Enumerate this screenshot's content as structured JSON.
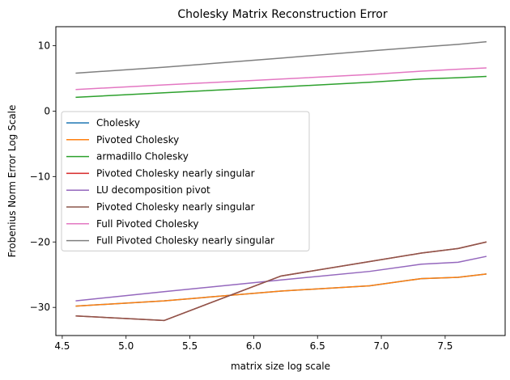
{
  "chart_data": {
    "type": "line",
    "title": "Cholesky Matrix Reconstruction Error",
    "xlabel": "matrix size log scale",
    "ylabel": "Frobenius Norm Error Log Scale",
    "xlim": [
      4.45,
      7.97
    ],
    "ylim": [
      -34.3,
      12.9
    ],
    "xticks": [
      4.5,
      5.0,
      5.5,
      6.0,
      6.5,
      7.0,
      7.5
    ],
    "xtick_labels": [
      "4.5",
      "5.0",
      "5.5",
      "6.0",
      "6.5",
      "7.0",
      "7.5"
    ],
    "yticks": [
      -30,
      -20,
      -10,
      0,
      10
    ],
    "ytick_labels": [
      "−30",
      "−20",
      "−10",
      "0",
      "10"
    ],
    "grid": false,
    "legend_position": "center-left",
    "x": [
      4.605,
      5.298,
      6.215,
      6.908,
      7.313,
      7.601,
      7.824
    ],
    "series": [
      {
        "name": "Cholesky",
        "color": "#1f77b4",
        "values": [
          -29.8,
          -29.0,
          -27.5,
          -26.7,
          -25.6,
          -25.4,
          -24.9
        ]
      },
      {
        "name": "Pivoted Cholesky",
        "color": "#ff7f0e",
        "values": [
          -29.8,
          -29.0,
          -27.5,
          -26.7,
          -25.6,
          -25.4,
          -24.9
        ]
      },
      {
        "name": "armadillo Cholesky",
        "color": "#2ca02c",
        "values": [
          2.1,
          2.8,
          3.7,
          4.4,
          4.9,
          5.1,
          5.3
        ]
      },
      {
        "name": "Pivoted Cholesky nearly singular",
        "color": "#d62728",
        "values": [
          -31.3,
          -32.0,
          -25.2,
          -23.0,
          -21.7,
          -21.0,
          -20.0
        ]
      },
      {
        "name": "LU decomposition pivot",
        "color": "#9467bd",
        "values": [
          -29.0,
          -27.6,
          -25.8,
          -24.5,
          -23.4,
          -23.1,
          -22.2
        ]
      },
      {
        "name": "Pivoted Cholesky nearly singular",
        "color": "#8c564b",
        "values": [
          -31.3,
          -32.0,
          -25.2,
          -23.0,
          -21.7,
          -21.0,
          -20.0
        ]
      },
      {
        "name": "Full Pivoted Cholesky",
        "color": "#e377c2",
        "values": [
          3.3,
          4.0,
          4.9,
          5.6,
          6.1,
          6.4,
          6.6
        ]
      },
      {
        "name": "Full Pivoted Cholesky nearly singular",
        "color": "#7f7f7f",
        "values": [
          5.8,
          6.7,
          8.1,
          9.2,
          9.8,
          10.2,
          10.6
        ]
      }
    ]
  }
}
